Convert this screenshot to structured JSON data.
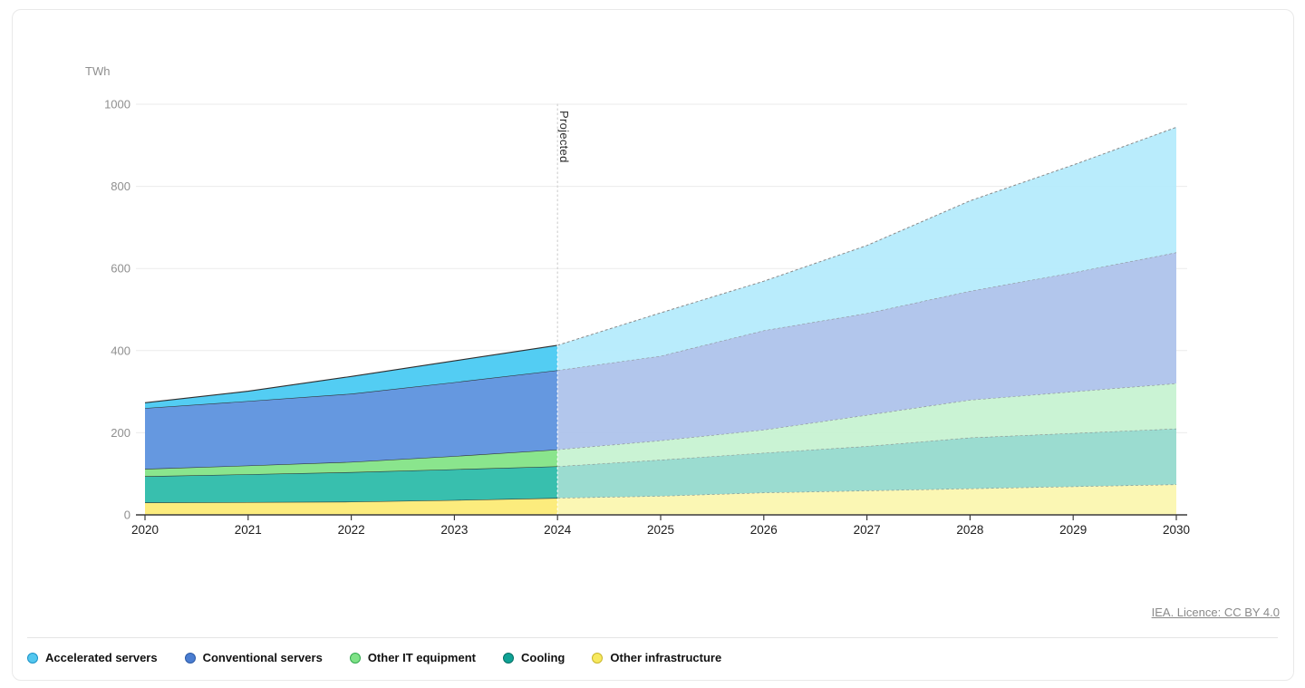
{
  "licence": {
    "label": "IEA. Licence: CC BY 4.0"
  },
  "chart_data": {
    "type": "area",
    "stacked": true,
    "unit_label": "TWh",
    "xlabel": "",
    "ylabel": "TWh",
    "x": [
      2020,
      2021,
      2022,
      2023,
      2024,
      2025,
      2026,
      2027,
      2028,
      2029,
      2030
    ],
    "ylim": [
      0,
      1000
    ],
    "yticks": [
      0,
      200,
      400,
      600,
      800,
      1000
    ],
    "grid": true,
    "projection_start": 2024,
    "projected_label": "Projected",
    "legend_position": "bottom",
    "series": [
      {
        "name": "Other infrastructure",
        "key": "other_infrastructure",
        "values": [
          30,
          31,
          32,
          36,
          41,
          46,
          54,
          59,
          64,
          69,
          74
        ],
        "color_historical": "#fcec7d",
        "color_projected": "#fbf6ae",
        "dot_fill": "#f7e95e",
        "dot_stroke": "#c9b62c"
      },
      {
        "name": "Cooling",
        "key": "cooling",
        "values": [
          64,
          68,
          72,
          75,
          77,
          88,
          97,
          108,
          124,
          130,
          136
        ],
        "color_historical": "#38bfae",
        "color_projected": "#93d9cc",
        "dot_fill": "#0fa295",
        "dot_stroke": "#067065"
      },
      {
        "name": "Other IT equipment",
        "key": "other_it_equipment",
        "values": [
          18,
          21,
          25,
          32,
          41,
          47,
          56,
          76,
          92,
          101,
          110
        ],
        "color_historical": "#8ae58d",
        "color_projected": "#c5f2d0",
        "dot_fill": "#7fe287",
        "dot_stroke": "#33a94f"
      },
      {
        "name": "Conventional servers",
        "key": "conventional_servers",
        "values": [
          148,
          157,
          166,
          180,
          193,
          206,
          242,
          248,
          265,
          290,
          319
        ],
        "color_historical": "#6598e0",
        "color_projected": "#abc1ea",
        "dot_fill": "#4a7dd1",
        "dot_stroke": "#2d5ba6"
      },
      {
        "name": "Accelerated servers",
        "key": "accelerated_servers",
        "values": [
          13,
          24,
          42,
          52,
          61,
          105,
          120,
          165,
          220,
          262,
          305
        ],
        "color_historical": "#53cdf3",
        "color_projected": "#b3eafc",
        "dot_fill": "#53c7ef",
        "dot_stroke": "#1d93c7"
      }
    ]
  },
  "legend": {
    "items": [
      {
        "label": "Accelerated servers",
        "series_key": "accelerated_servers"
      },
      {
        "label": "Conventional servers",
        "series_key": "conventional_servers"
      },
      {
        "label": "Other IT equipment",
        "series_key": "other_it_equipment"
      },
      {
        "label": "Cooling",
        "series_key": "cooling"
      },
      {
        "label": "Other infrastructure",
        "series_key": "other_infrastructure"
      }
    ]
  }
}
